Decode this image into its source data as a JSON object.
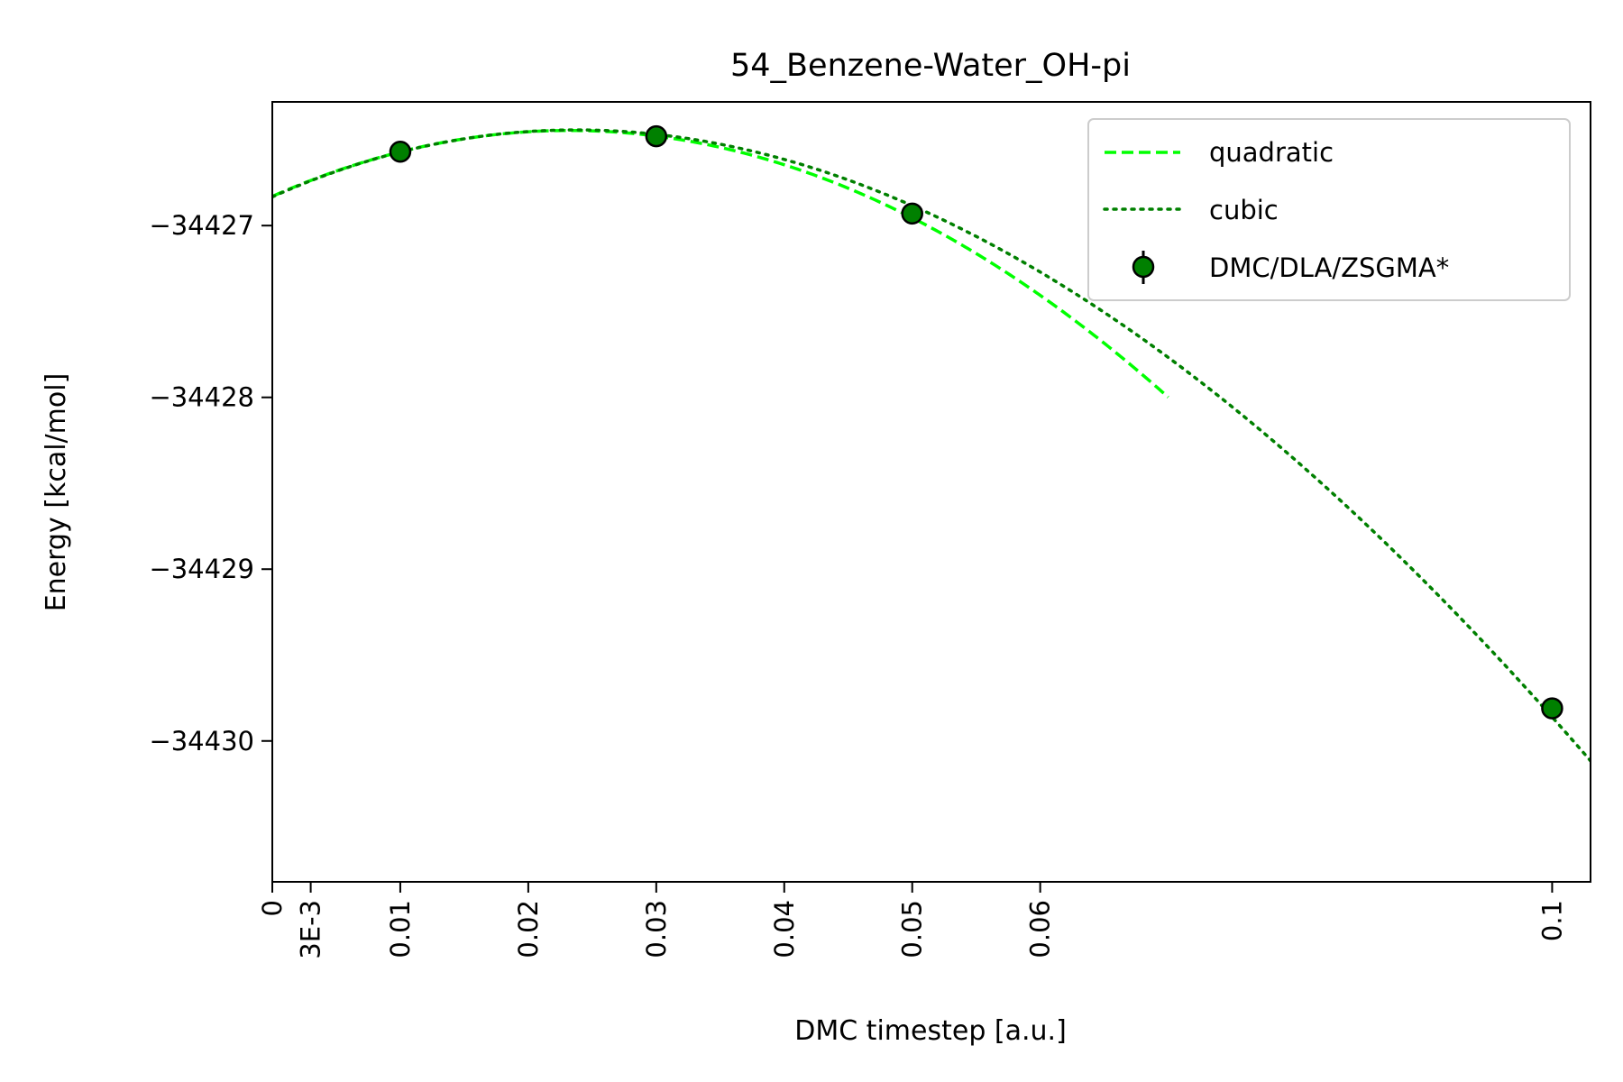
{
  "chart_data": {
    "type": "scatter",
    "title": "54_Benzene-Water_OH-pi",
    "xlabel": "DMC timestep [a.u.]",
    "ylabel": "Energy [kcal/mol]",
    "xlim": [
      0,
      0.103
    ],
    "ylim": [
      -34430.82,
      -34426.28
    ],
    "x_ticks": [
      {
        "value": 0,
        "label": "0"
      },
      {
        "value": 0.003,
        "label": "3E-3"
      },
      {
        "value": 0.01,
        "label": "0.01"
      },
      {
        "value": 0.02,
        "label": "0.02"
      },
      {
        "value": 0.03,
        "label": "0.03"
      },
      {
        "value": 0.04,
        "label": "0.04"
      },
      {
        "value": 0.05,
        "label": "0.05"
      },
      {
        "value": 0.06,
        "label": "0.06"
      },
      {
        "value": 0.1,
        "label": "0.1"
      }
    ],
    "y_ticks": [
      {
        "value": -34427,
        "label": "−34427"
      },
      {
        "value": -34428,
        "label": "−34428"
      },
      {
        "value": -34429,
        "label": "−34429"
      },
      {
        "value": -34430,
        "label": "−34430"
      }
    ],
    "grid": false,
    "legend_position": "top-right",
    "series": [
      {
        "name": "quadratic",
        "kind": "line",
        "style": "dashed",
        "color": "#00ff00",
        "x_range": [
          0,
          0.07
        ],
        "coefficients": [
          -34426.83,
          33.0,
          -710.0
        ]
      },
      {
        "name": "cubic",
        "kind": "line",
        "style": "dotted",
        "color": "#008000",
        "x_range": [
          0,
          0.103
        ],
        "coefficients": [
          -34426.833,
          33.42,
          -740.7,
          1037.0
        ]
      },
      {
        "name": "DMC/DLA/ZSGMA*",
        "kind": "points",
        "color": "#008000",
        "edge_color": "#000000",
        "x": [
          0.01,
          0.03,
          0.05,
          0.1
        ],
        "y": [
          -34426.57,
          -34426.48,
          -34426.93,
          -34429.81
        ]
      }
    ]
  }
}
